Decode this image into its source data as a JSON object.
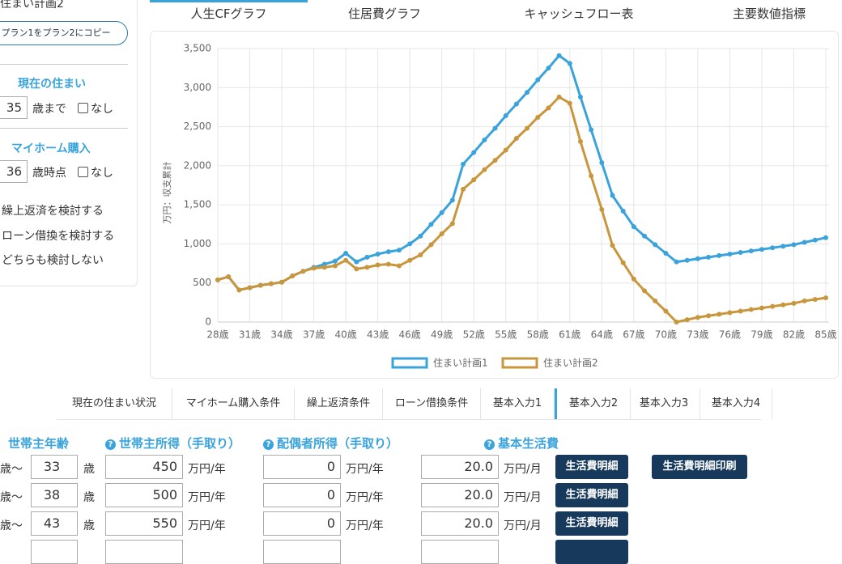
{
  "sidebar": {
    "plan": "住まい計画2",
    "copy_button": "プラン1をプラン2にコピー",
    "current_home": {
      "heading": "現在の住まい",
      "age": "35",
      "unit": "歳まで",
      "none": "なし"
    },
    "purchase": {
      "heading": "マイホーム購入",
      "age": "36",
      "unit": "歳時点",
      "none": "なし"
    },
    "options": [
      "繰上返済を検討する",
      "ローン借換を検討する",
      "どちらも検討しない"
    ]
  },
  "tabs": [
    "人生CFグラフ",
    "住居費グラフ",
    "キャッシュフロー表",
    "主要数値指標"
  ],
  "chart_data": {
    "type": "line",
    "ylabel": "万円：収支累計",
    "categories": [
      "28歳",
      null,
      null,
      "31歳",
      null,
      null,
      "34歳",
      null,
      null,
      "37歳",
      null,
      null,
      "40歳",
      null,
      null,
      "43歳",
      null,
      null,
      "46歳",
      null,
      null,
      "49歳",
      null,
      null,
      "52歳",
      null,
      null,
      "55歳",
      null,
      null,
      "58歳",
      null,
      null,
      "61歳",
      null,
      null,
      "64歳",
      null,
      null,
      "67歳",
      null,
      null,
      "70歳",
      null,
      null,
      "73歳",
      null,
      null,
      "76歳",
      null,
      null,
      "79歳",
      null,
      null,
      "82歳",
      null,
      null,
      "85歳"
    ],
    "ylim": [
      0,
      3500
    ],
    "yticks": [
      0,
      500,
      {
        "value": 1000,
        "label": "1,000"
      },
      {
        "value": 1500,
        "label": "1,500"
      },
      {
        "value": 2000,
        "label": "2,000"
      },
      {
        "value": 2500,
        "label": "2,500"
      },
      {
        "value": 3000,
        "label": "3,000"
      },
      {
        "value": 3500,
        "label": "3,500"
      }
    ],
    "grid": true,
    "series": [
      {
        "name": "住まい計画1",
        "color": "#3aa3dc",
        "values": [
          540,
          580,
          410,
          440,
          470,
          490,
          510,
          590,
          650,
          700,
          740,
          780,
          880,
          770,
          830,
          870,
          900,
          920,
          1000,
          1100,
          1250,
          1400,
          1560,
          2020,
          2170,
          2330,
          2480,
          2640,
          2790,
          2940,
          3100,
          3250,
          3410,
          3310,
          2880,
          2460,
          2040,
          1620,
          1420,
          1220,
          1100,
          990,
          880,
          770,
          790,
          810,
          830,
          850,
          870,
          890,
          910,
          930,
          950,
          970,
          990,
          1020,
          1050,
          1080
        ]
      },
      {
        "name": "住まい計画2",
        "color": "#c8963c",
        "values": [
          540,
          580,
          410,
          440,
          470,
          490,
          510,
          590,
          650,
          690,
          700,
          720,
          790,
          680,
          700,
          730,
          740,
          720,
          790,
          860,
          990,
          1130,
          1260,
          1700,
          1820,
          1950,
          2070,
          2200,
          2350,
          2480,
          2620,
          2740,
          2880,
          2800,
          2310,
          1870,
          1440,
          980,
          760,
          550,
          400,
          270,
          140,
          0,
          30,
          60,
          80,
          100,
          120,
          140,
          160,
          180,
          200,
          220,
          240,
          270,
          290,
          310
        ]
      }
    ]
  },
  "lower_tabs": [
    "現在の住まい状況",
    "マイホーム購入条件",
    "繰上返済条件",
    "ローン借換条件",
    "基本入力1",
    "基本入力2",
    "基本入力3",
    "基本入力4"
  ],
  "form": {
    "headers": [
      "世帯主年齢",
      "世帯主所得（手取り）",
      "配偶者所得（手取り）",
      "基本生活費"
    ],
    "age_from": "歳～",
    "age_unit": "歳",
    "year_unit": "万円/年",
    "month_unit": "万円/月",
    "detail_button": "生活費明細",
    "print_button": "生活費明細印刷",
    "rows": [
      [
        "33",
        "450",
        "0",
        "20.0"
      ],
      [
        "38",
        "500",
        "0",
        "20.0"
      ],
      [
        "43",
        "550",
        "0",
        "20.0"
      ]
    ]
  }
}
